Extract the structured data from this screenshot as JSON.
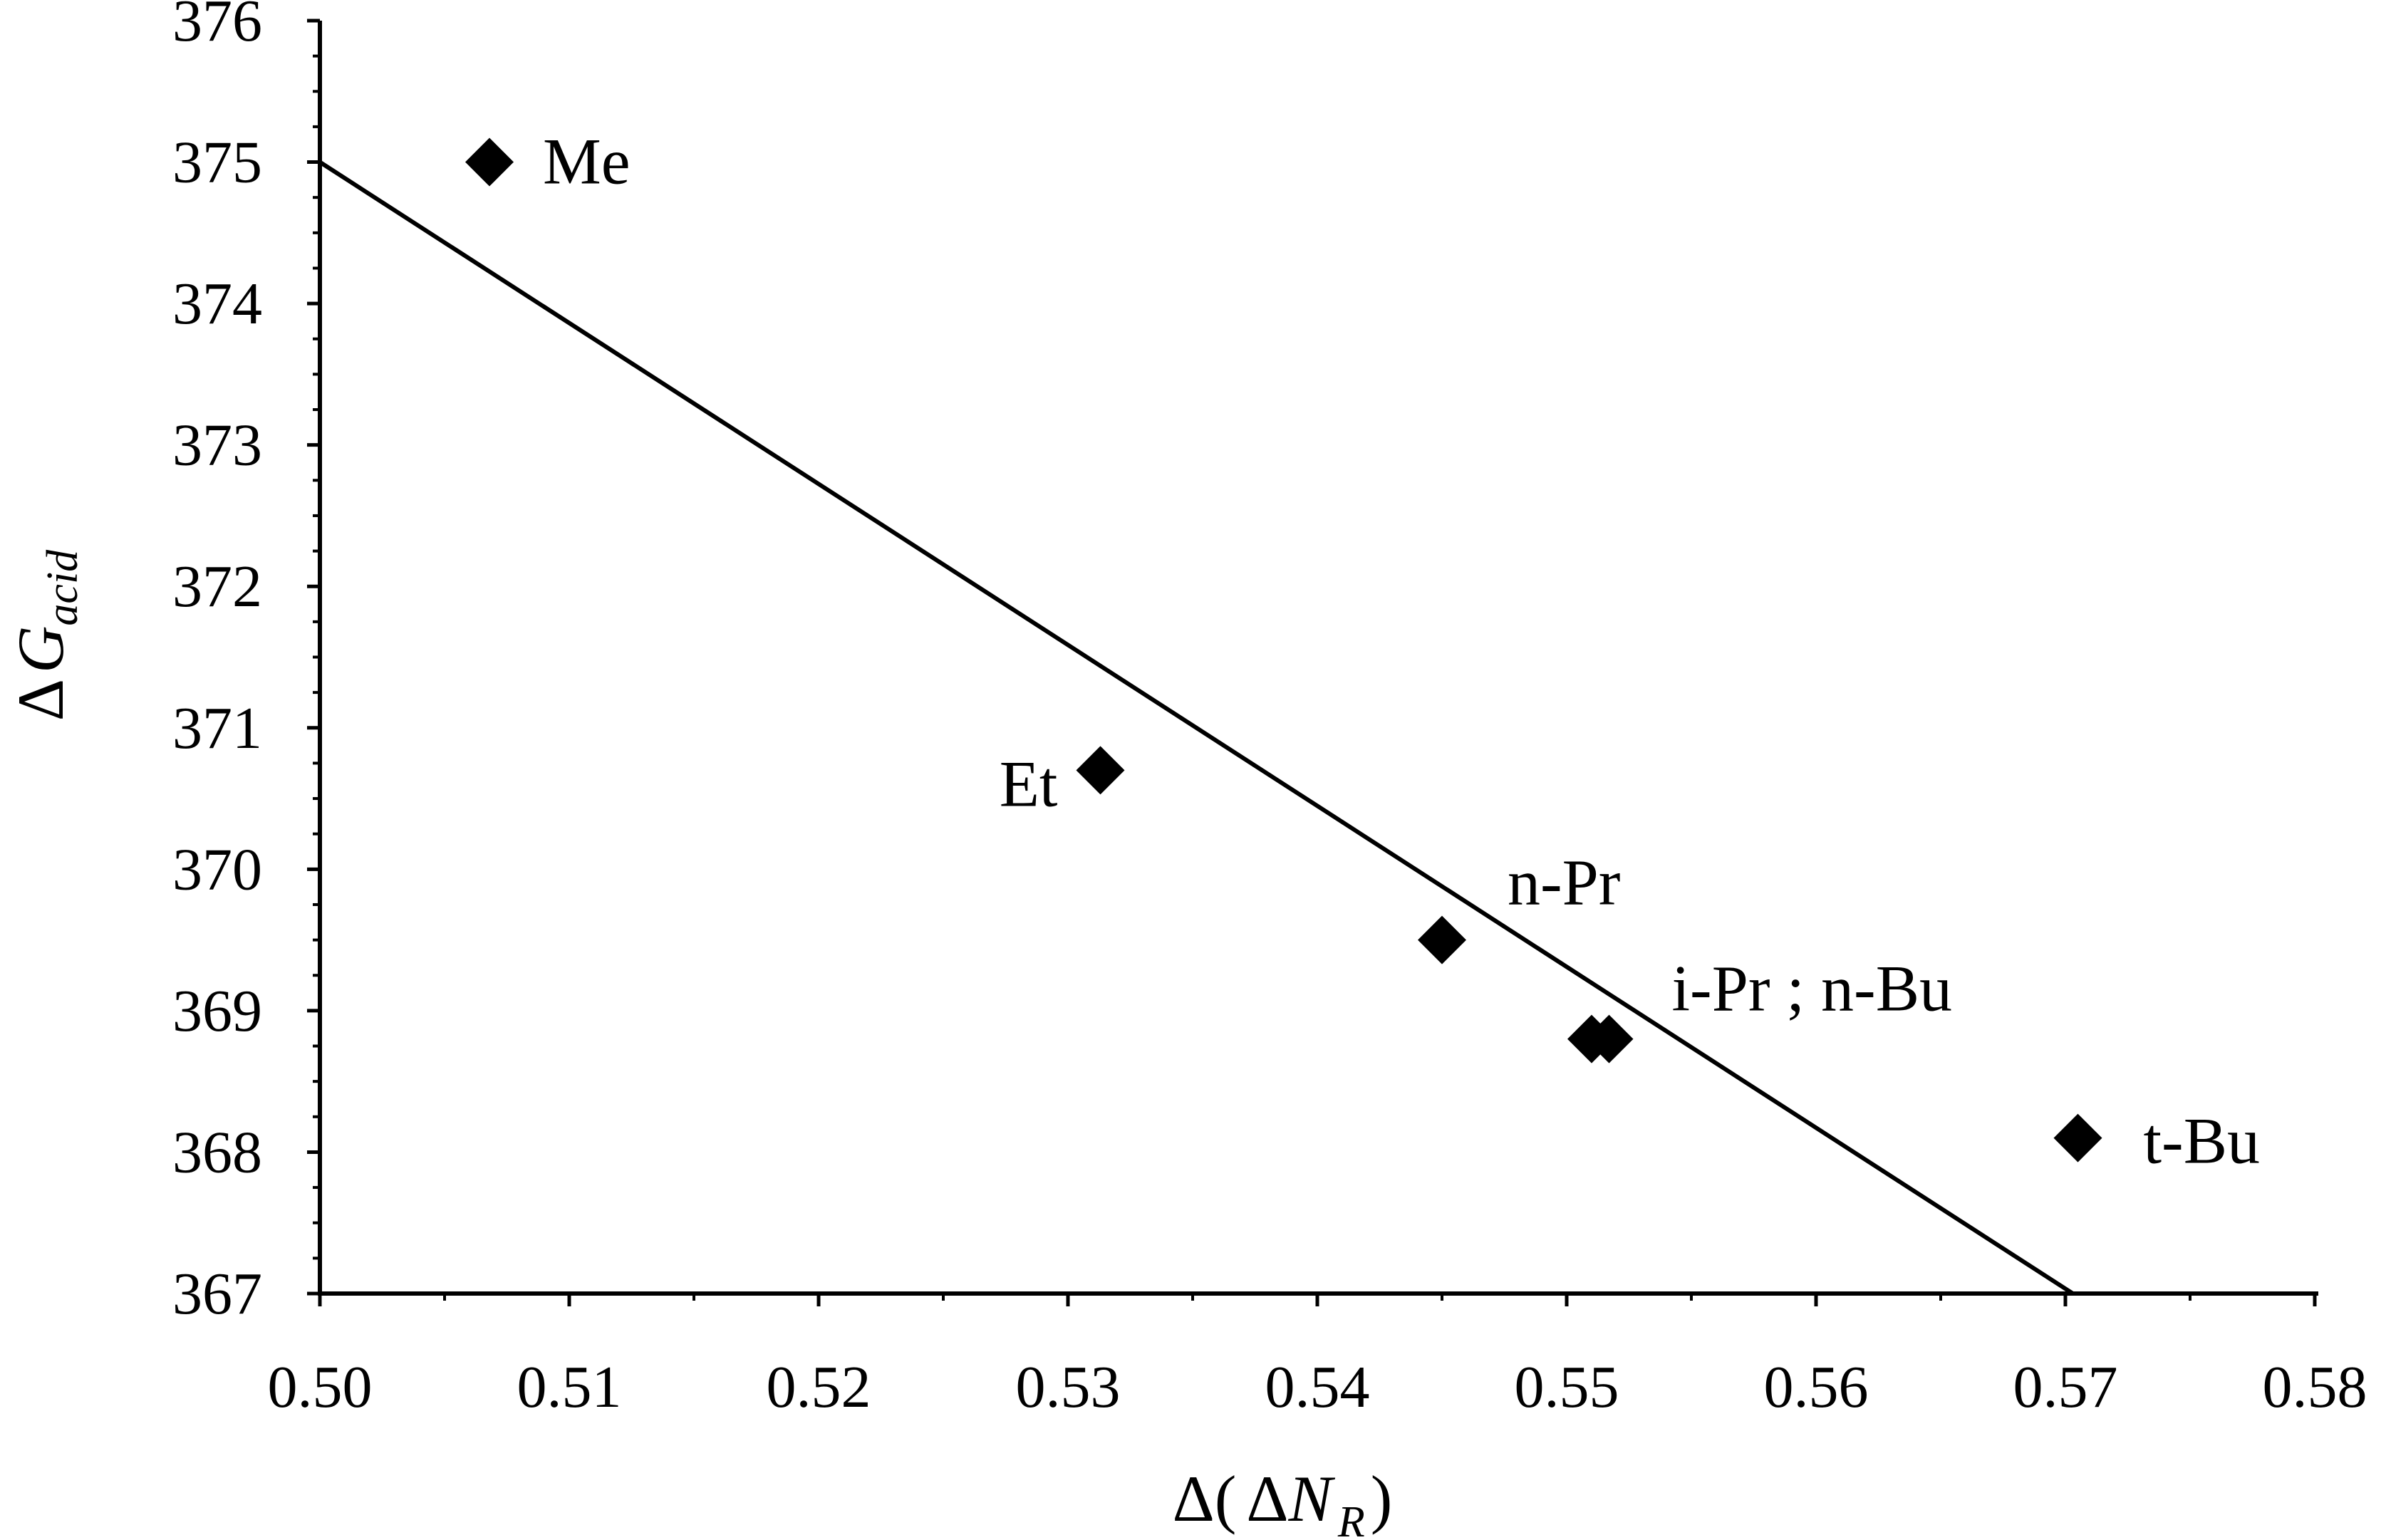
{
  "chart_data": {
    "type": "scatter",
    "xlabel": {
      "delta": "Δ",
      "open": "(",
      "delta2": "Δ",
      "var": "N",
      "sub": "R",
      "close": ")"
    },
    "ylabel": {
      "delta": "Δ",
      "var": "G",
      "sub": "acid"
    },
    "xlim": [
      0.5,
      0.58
    ],
    "ylim": [
      367,
      376
    ],
    "x_ticks": [
      "0.50",
      "0.51",
      "0.52",
      "0.53",
      "0.54",
      "0.55",
      "0.56",
      "0.57",
      "0.58"
    ],
    "y_ticks": [
      "367",
      "368",
      "369",
      "370",
      "371",
      "372",
      "373",
      "374",
      "375",
      "376"
    ],
    "grid": false,
    "points": [
      {
        "label": "Me",
        "x": 0.5068,
        "y": 375.0
      },
      {
        "label": "Et",
        "x": 0.5313,
        "y": 370.7
      },
      {
        "label": "n-Pr",
        "x": 0.545,
        "y": 369.5
      },
      {
        "label": "",
        "x": 0.551,
        "y": 368.8
      },
      {
        "label": "i-Pr ; n-Bu",
        "x": 0.5517,
        "y": 368.8
      },
      {
        "label": "t-Bu",
        "x": 0.5705,
        "y": 368.1
      }
    ],
    "trendline": {
      "x": [
        0.5,
        0.5703
      ],
      "y": [
        375.0,
        367.0
      ]
    }
  }
}
